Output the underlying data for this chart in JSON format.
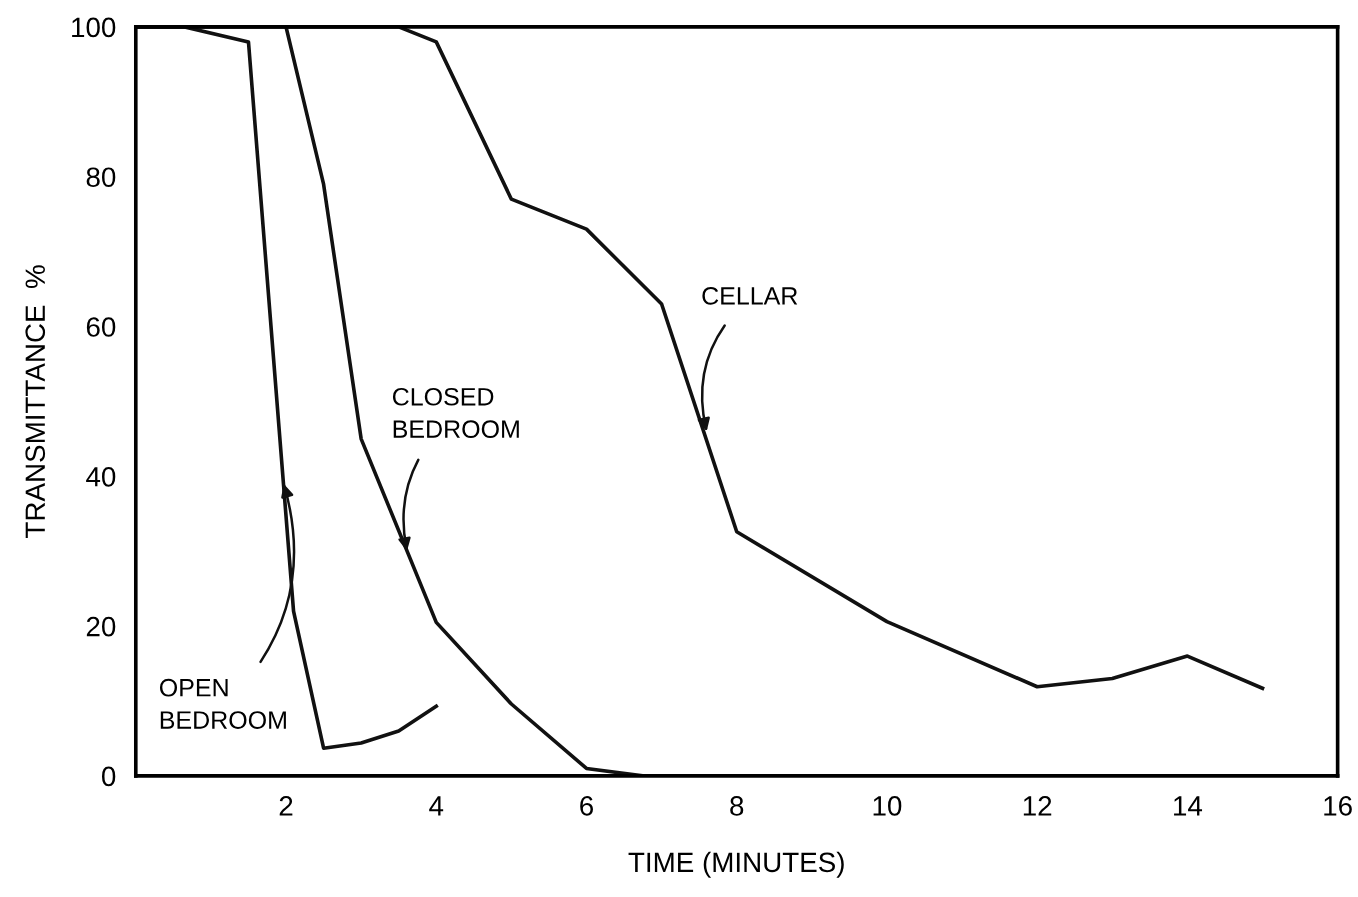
{
  "chart_data": {
    "type": "line",
    "xlabel": "TIME (MINUTES)",
    "ylabel": "TRANSMITTANCE  %",
    "xlim": [
      0,
      16
    ],
    "ylim": [
      0,
      100
    ],
    "xticks": [
      2,
      4,
      6,
      8,
      10,
      12,
      14,
      16
    ],
    "yticks": [
      0,
      20,
      40,
      60,
      80,
      100
    ],
    "grid": false,
    "legend": false,
    "marker": "none",
    "line_style": "solid",
    "series": [
      {
        "color": "#111111",
        "x": [
          0,
          0.65,
          1.5,
          2.1,
          2.5,
          3.0,
          3.5,
          4.0
        ],
        "values": [
          100,
          100,
          98,
          22,
          3.7,
          4.4,
          6,
          9.3
        ]
      },
      {
        "color": "#111111",
        "x": [
          2,
          2.5,
          3.0,
          4.0,
          5.0,
          6.0,
          6.75
        ],
        "values": [
          100,
          79,
          45,
          20.5,
          9.6,
          1,
          0
        ]
      },
      {
        "color": "#111111",
        "x": [
          0,
          3.5,
          4.0,
          5.0,
          6.0,
          7.0,
          8.0,
          10.0,
          12.0,
          13.0,
          14.0,
          15.0
        ],
        "values": [
          100,
          100,
          98,
          77,
          73,
          63,
          32.6,
          20.6,
          11.9,
          13,
          16,
          11.7
        ]
      }
    ],
    "annotations": [
      {
        "text": "OPEN\nBEDROOM",
        "x": 1.97,
        "y": 39
      },
      {
        "text": "CLOSED\nBEDROOM",
        "x": 3.61,
        "y": 30
      },
      {
        "text": "CELLAR",
        "x": 7.6,
        "y": 46
      }
    ]
  }
}
